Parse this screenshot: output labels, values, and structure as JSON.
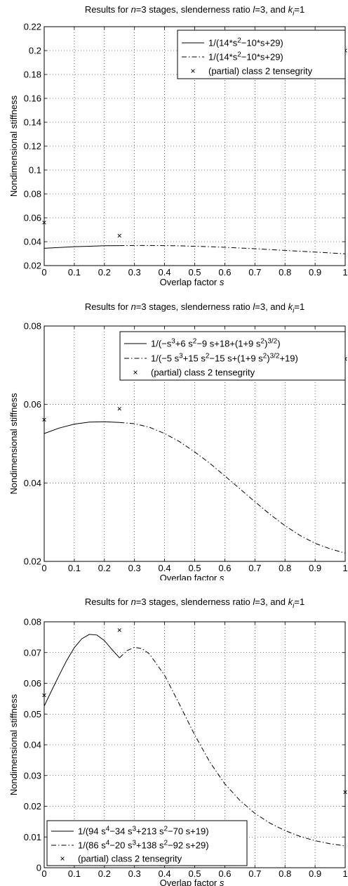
{
  "chart_data": [
    {
      "type": "line",
      "title": "Results for n=3 stages, slenderness ratio l=3, and k_i=1",
      "title_parts": {
        "a": "Results for ",
        "n": "n",
        "b": "=3 stages, slenderness ratio ",
        "l": "l",
        "c": "=3, and ",
        "k": "k",
        "i": "i",
        "d": "=1"
      },
      "xlabel": "Overlap factor",
      "xlabel_var": "s",
      "ylabel": "Nondimensional stiffness",
      "xlim": [
        0,
        1
      ],
      "ylim": [
        0.02,
        0.22
      ],
      "xticks": [
        "0",
        "0.1",
        "0.2",
        "0.3",
        "0.4",
        "0.5",
        "0.6",
        "0.7",
        "0.8",
        "0.9",
        "1"
      ],
      "yticks": [
        "0.02",
        "0.04",
        "0.06",
        "0.08",
        "0.1",
        "0.12",
        "0.14",
        "0.16",
        "0.18",
        "0.2",
        "0.22"
      ],
      "grid": true,
      "legend_position": "top-right",
      "legend": [
        {
          "style": "solid",
          "parts": [
            [
              "1/(14*s",
              "n"
            ],
            [
              "2",
              "sup"
            ],
            [
              "−10*s+29)",
              "n"
            ]
          ]
        },
        {
          "style": "dashdot",
          "parts": [
            [
              "1/(14*s",
              "n"
            ],
            [
              "2",
              "sup"
            ],
            [
              "−10*s+29)",
              "n"
            ]
          ]
        },
        {
          "style": "marker",
          "parts": [
            [
              "(partial) class 2 tensegrity",
              "n"
            ]
          ]
        }
      ],
      "series": [
        {
          "style": "solid",
          "x": [
            0,
            0.05,
            0.1,
            0.15,
            0.2,
            0.25
          ],
          "y": [
            0.0345,
            0.0352,
            0.0358,
            0.0362,
            0.0366,
            0.0367
          ]
        },
        {
          "style": "dashdot",
          "x": [
            0.25,
            0.3,
            0.35,
            0.4,
            0.45,
            0.5,
            0.55,
            0.6,
            0.65,
            0.7,
            0.75,
            0.8,
            0.85,
            0.9,
            0.95,
            1.0
          ],
          "y": [
            0.0367,
            0.0368,
            0.0368,
            0.0367,
            0.0365,
            0.0362,
            0.0358,
            0.0353,
            0.0347,
            0.0341,
            0.0334,
            0.0327,
            0.032,
            0.0313,
            0.0306,
            0.0299
          ]
        },
        {
          "style": "marker",
          "x": [
            0,
            0.25,
            1.0
          ],
          "y": [
            0.056,
            0.045,
            0.2
          ]
        }
      ]
    },
    {
      "type": "line",
      "title": "Results for n=3 stages, slenderness ratio l=3, and k_i=1",
      "title_parts": {
        "a": "Results for ",
        "n": "n",
        "b": "=3 stages, slenderness ratio ",
        "l": "l",
        "c": "=3, and ",
        "k": "k",
        "i": "i",
        "d": "=1"
      },
      "xlabel": "Overlap factor",
      "xlabel_var": "s",
      "ylabel": "Nondimensional stiffness",
      "xlim": [
        0,
        1
      ],
      "ylim": [
        0.02,
        0.08
      ],
      "xticks": [
        "0",
        "0.1",
        "0.2",
        "0.3",
        "0.4",
        "0.5",
        "0.6",
        "0.7",
        "0.8",
        "0.9",
        "1"
      ],
      "yticks": [
        "0.02",
        "0.04",
        "0.06",
        "0.08"
      ],
      "grid": true,
      "legend_position": "top-right",
      "legend": [
        {
          "style": "solid",
          "parts": [
            [
              "1/(−s",
              "n"
            ],
            [
              "3",
              "sup"
            ],
            [
              "+6 s",
              "n"
            ],
            [
              "2",
              "sup"
            ],
            [
              "−9 s+18+(1+9 s",
              "n"
            ],
            [
              "2",
              "sup"
            ],
            [
              ")",
              "n"
            ],
            [
              "3/2",
              "sup"
            ],
            [
              ")",
              "n"
            ]
          ]
        },
        {
          "style": "dashdot",
          "parts": [
            [
              "1/(−5 s",
              "n"
            ],
            [
              "3",
              "sup"
            ],
            [
              "+15 s",
              "n"
            ],
            [
              "2",
              "sup"
            ],
            [
              "−15 s+(1+9 s",
              "n"
            ],
            [
              "2",
              "sup"
            ],
            [
              ")",
              "n"
            ],
            [
              "3/2",
              "sup"
            ],
            [
              "+19)",
              "n"
            ]
          ]
        },
        {
          "style": "marker",
          "parts": [
            [
              "(partial) class 2 tensegrity",
              "n"
            ]
          ]
        }
      ],
      "series": [
        {
          "style": "solid",
          "x": [
            0,
            0.05,
            0.1,
            0.15,
            0.2,
            0.25
          ],
          "y": [
            0.0526,
            0.054,
            0.055,
            0.0555,
            0.0556,
            0.0554
          ]
        },
        {
          "style": "dashdot",
          "x": [
            0.25,
            0.3,
            0.35,
            0.4,
            0.45,
            0.5,
            0.55,
            0.6,
            0.65,
            0.7,
            0.75,
            0.8,
            0.85,
            0.9,
            0.95,
            1.0
          ],
          "y": [
            0.0554,
            0.0551,
            0.0542,
            0.0526,
            0.0505,
            0.0479,
            0.045,
            0.0418,
            0.0385,
            0.0352,
            0.032,
            0.0291,
            0.0266,
            0.0246,
            0.0232,
            0.0221
          ]
        },
        {
          "style": "marker",
          "x": [
            0,
            0.25,
            1.0
          ],
          "y": [
            0.0561,
            0.0589,
            0.0716
          ]
        }
      ]
    },
    {
      "type": "line",
      "title": "Results for n=3 stages, slenderness ratio l=3, and k_i=1",
      "title_parts": {
        "a": "Results for ",
        "n": "n",
        "b": "=3 stages, slenderness ratio ",
        "l": "l",
        "c": "=3, and ",
        "k": "k",
        "i": "i",
        "d": "=1"
      },
      "xlabel": "Overlap factor",
      "xlabel_var": "s",
      "ylabel": "Nondimensional stiffness",
      "xlim": [
        0,
        1
      ],
      "ylim": [
        0,
        0.08
      ],
      "xticks": [
        "0",
        "0.1",
        "0.2",
        "0.3",
        "0.4",
        "0.5",
        "0.6",
        "0.7",
        "0.8",
        "0.9",
        "1"
      ],
      "yticks": [
        "0",
        "0.01",
        "0.02",
        "0.03",
        "0.04",
        "0.05",
        "0.06",
        "0.07",
        "0.08"
      ],
      "grid": true,
      "legend_position": "bottom-left",
      "legend": [
        {
          "style": "solid",
          "parts": [
            [
              "1/(94 s",
              "n"
            ],
            [
              "4",
              "sup"
            ],
            [
              "−34 s",
              "n"
            ],
            [
              "3",
              "sup"
            ],
            [
              "+213 s",
              "n"
            ],
            [
              "2",
              "sup"
            ],
            [
              "−70 s+19)",
              "n"
            ]
          ]
        },
        {
          "style": "dashdot",
          "parts": [
            [
              "1/(86 s",
              "n"
            ],
            [
              "4",
              "sup"
            ],
            [
              "−20 s",
              "n"
            ],
            [
              "3",
              "sup"
            ],
            [
              "+138 s",
              "n"
            ],
            [
              "2",
              "sup"
            ],
            [
              "−92 s+29)",
              "n"
            ]
          ]
        },
        {
          "style": "marker",
          "parts": [
            [
              "(partial) class 2 tensegrity",
              "n"
            ]
          ]
        }
      ],
      "series": [
        {
          "style": "solid",
          "x": [
            0,
            0.025,
            0.05,
            0.075,
            0.1,
            0.125,
            0.15,
            0.175,
            0.2,
            0.225,
            0.25
          ],
          "y": [
            0.0526,
            0.0577,
            0.0627,
            0.0675,
            0.0716,
            0.0745,
            0.0759,
            0.0757,
            0.0739,
            0.071,
            0.0683
          ]
        },
        {
          "style": "dashdot",
          "x": [
            0.25,
            0.275,
            0.3,
            0.325,
            0.35,
            0.4,
            0.45,
            0.5,
            0.55,
            0.6,
            0.65,
            0.7,
            0.75,
            0.8,
            0.85,
            0.9,
            0.95,
            1.0
          ],
          "y": [
            0.0683,
            0.0706,
            0.0717,
            0.0713,
            0.0695,
            0.0626,
            0.053,
            0.0432,
            0.0344,
            0.0273,
            0.0219,
            0.0177,
            0.0145,
            0.0121,
            0.0102,
            0.0088,
            0.0078,
            0.0071
          ]
        },
        {
          "style": "marker",
          "x": [
            0,
            0.25,
            1.0
          ],
          "y": [
            0.0561,
            0.0773,
            0.0246
          ]
        }
      ]
    }
  ]
}
